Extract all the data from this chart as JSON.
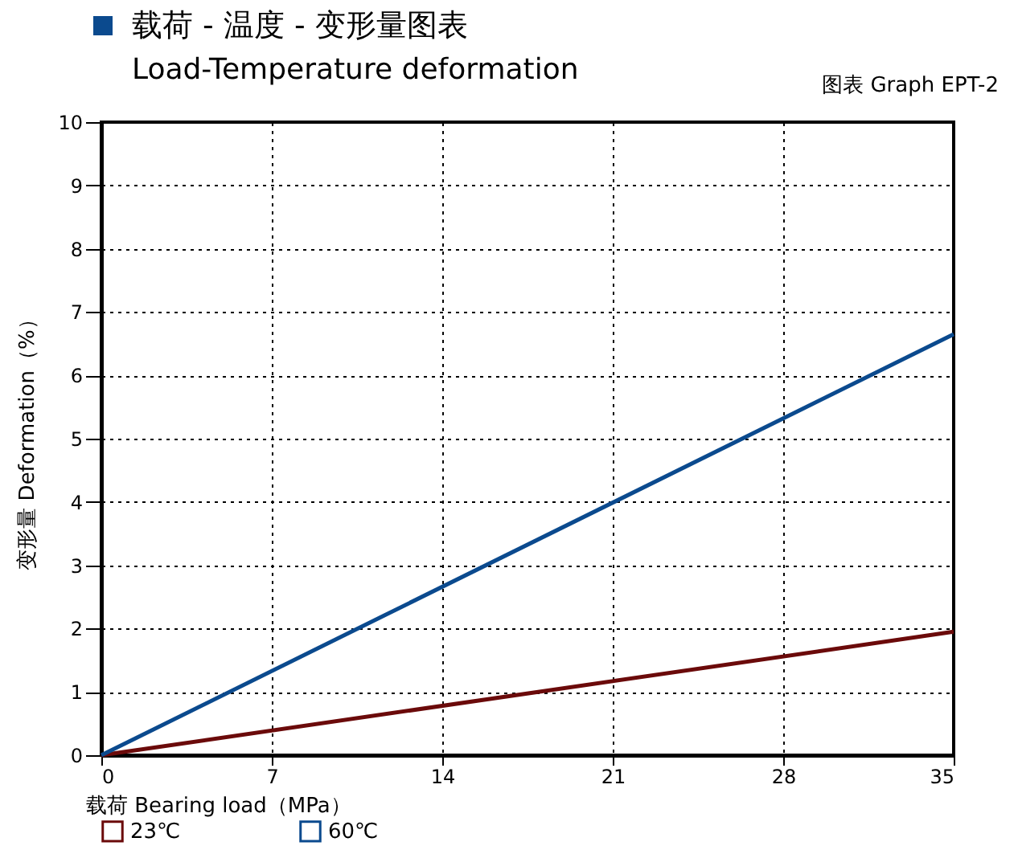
{
  "chart_data": {
    "type": "line",
    "title": "载荷 - 温度 - 变形量图表",
    "subtitle": "Load-Temperature deformation",
    "annotations": [
      "图表 Graph EPT-2"
    ],
    "xlabel": "载荷 Bearing load（MPa）",
    "ylabel": "变形量 Deformation（%）",
    "x": [
      0,
      35
    ],
    "series": [
      {
        "name": "23℃",
        "color": "#6b0a0a",
        "values": [
          0,
          1.95
        ]
      },
      {
        "name": "60℃",
        "color": "#0b4a8e",
        "values": [
          0,
          6.65
        ]
      }
    ],
    "xlim": [
      0,
      35
    ],
    "xticks": [
      0,
      7,
      14,
      21,
      28,
      35
    ],
    "ylim": [
      0,
      10
    ],
    "yticks": [
      0,
      1,
      2,
      3,
      4,
      5,
      6,
      7,
      8,
      9,
      10
    ],
    "grid": true,
    "legend": "bottom",
    "line_style": "solid",
    "marker": "none"
  }
}
